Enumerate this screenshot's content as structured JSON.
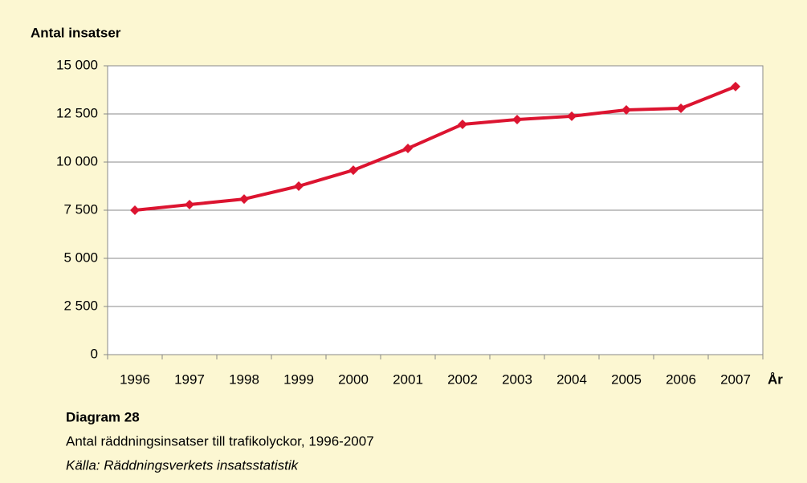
{
  "chart_data": {
    "type": "line",
    "y_label": "Antal insatser",
    "x_label": "År",
    "caption_title": "Diagram 28",
    "caption": "Antal räddningsinsatser till trafikolyckor, 1996-2007",
    "source": "Källa: Räddningsverkets insatsstatistik",
    "categories": [
      "1996",
      "1997",
      "1998",
      "1999",
      "2000",
      "2001",
      "2002",
      "2003",
      "2004",
      "2005",
      "2006",
      "2007"
    ],
    "series": [
      {
        "color": "#dc1430",
        "values": [
          7500,
          7790,
          8080,
          8750,
          9580,
          10710,
          11960,
          12210,
          12380,
          12710,
          12790,
          13920
        ]
      }
    ],
    "ylim": [
      0,
      15000
    ],
    "yticks": [
      0,
      {
        "value": 2500,
        "label": "2 500"
      },
      {
        "value": 5000,
        "label": "5 000"
      },
      {
        "value": 7500,
        "label": "7 500"
      },
      {
        "value": 10000,
        "label": "10 000"
      },
      {
        "value": 12500,
        "label": "12 500"
      },
      {
        "value": 15000,
        "label": "15 000"
      }
    ],
    "grid": true
  }
}
